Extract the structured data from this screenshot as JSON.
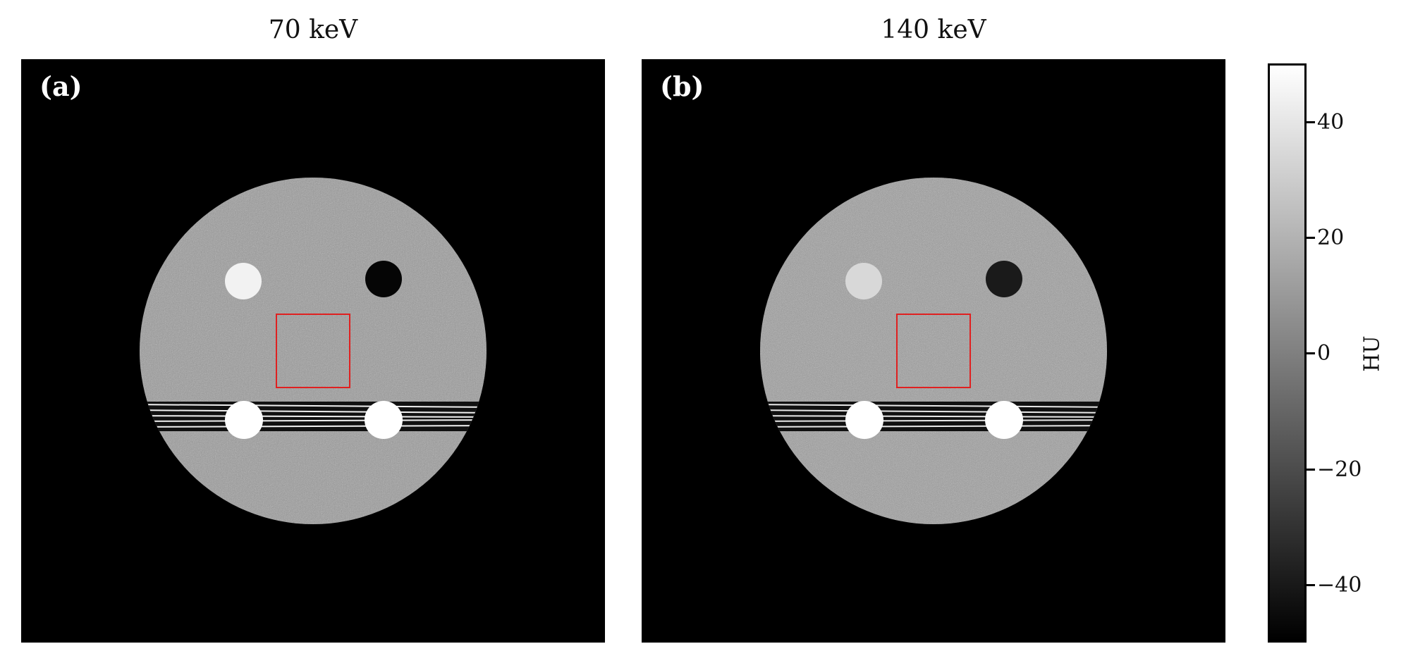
{
  "panels": [
    {
      "title": "70 keV",
      "letter": "(a)"
    },
    {
      "title": "140 keV",
      "letter": "(b)"
    }
  ],
  "colorbar": {
    "label": "HU",
    "range": [
      -50,
      50
    ],
    "ticks": [
      "40",
      "20",
      "0",
      "−20",
      "−40"
    ],
    "colormap": "gray"
  },
  "colors": {
    "roi_box": "#e02020",
    "background": "#000000"
  }
}
